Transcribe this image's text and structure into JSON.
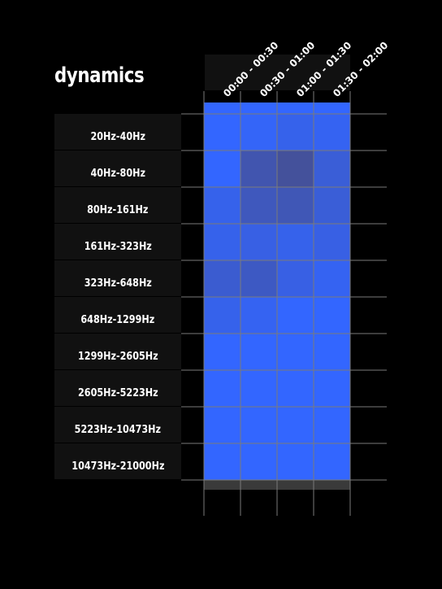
{
  "title": "dynamics",
  "chart_data": {
    "type": "heatmap",
    "title": "dynamics",
    "x": [
      "00:00 - 00:30",
      "00:30 - 01:00",
      "01:00 - 01:30",
      "01:30 - 02:00"
    ],
    "y": [
      "20Hz-40Hz",
      "40Hz-80Hz",
      "80Hz-161Hz",
      "161Hz-323Hz",
      "323Hz-648Hz",
      "648Hz-1299Hz",
      "1299Hz-2605Hz",
      "2605Hz-5223Hz",
      "5223Hz-10473Hz",
      "10473Hz-21000Hz"
    ],
    "values": [
      [
        1.0,
        0.95,
        0.85,
        0.9
      ],
      [
        1.0,
        0.4,
        0.25,
        0.7
      ],
      [
        0.85,
        0.5,
        0.45,
        0.7
      ],
      [
        0.85,
        0.8,
        0.85,
        0.8
      ],
      [
        0.65,
        0.55,
        0.8,
        0.9
      ],
      [
        0.85,
        0.9,
        1.0,
        1.0
      ],
      [
        1.0,
        1.0,
        1.0,
        1.0
      ],
      [
        1.0,
        1.0,
        1.0,
        1.0
      ],
      [
        1.0,
        1.0,
        1.0,
        1.0
      ],
      [
        1.0,
        1.0,
        1.0,
        1.0
      ]
    ],
    "value_range": [
      0,
      1
    ],
    "colors": {
      "high": "#3366ff",
      "low": "#4a4a7a",
      "cap": "#3a3a3a",
      "grid": "#7a7a7a"
    }
  }
}
